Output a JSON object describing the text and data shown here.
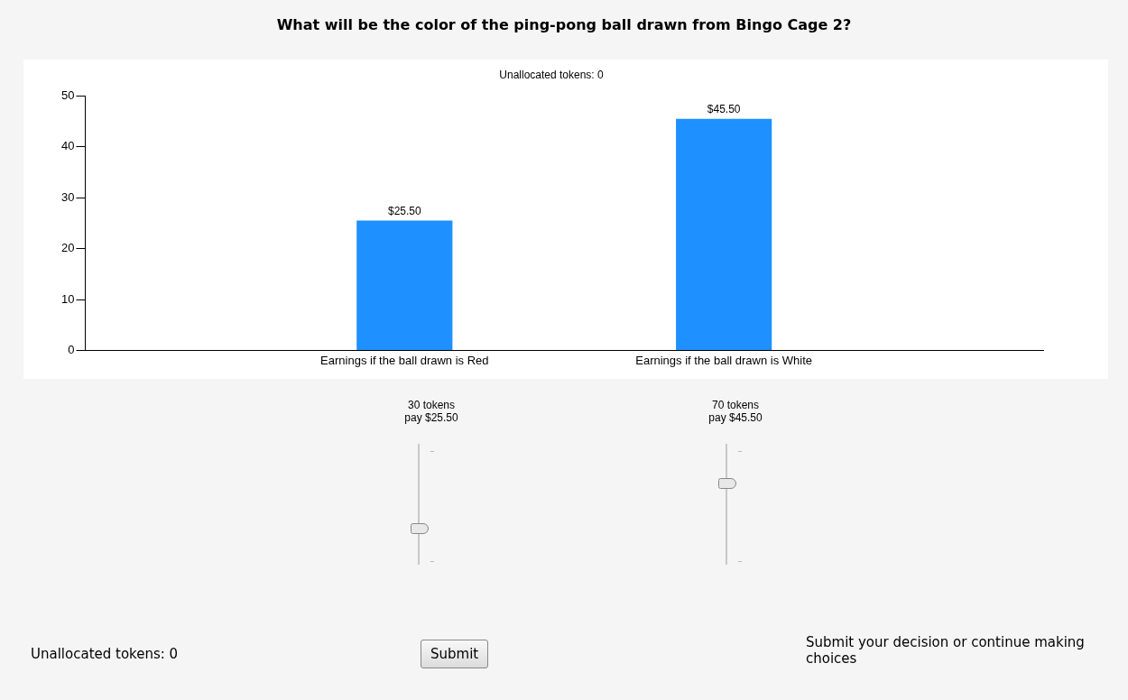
{
  "chart_data": {
    "type": "bar",
    "title": "What will be the color of the ping-pong ball drawn from Bingo Cage 2?",
    "subtitle": "Unallocated tokens: 0",
    "categories": [
      "Earnings if the ball drawn is Red",
      "Earnings if the ball drawn is White"
    ],
    "values": [
      25.5,
      45.5
    ],
    "color": "#1e90ff",
    "value_labels": [
      "$25.50",
      "$45.50"
    ],
    "ylim": [
      0,
      50
    ],
    "yticks": [
      0,
      10,
      20,
      30,
      40,
      50
    ],
    "grid": false,
    "legend": false,
    "annotations": [
      "30 tokens\npay $25.50",
      "70 tokens\npay $45.50",
      "Unallocated tokens: 0",
      "Submit",
      "Submit your decision or continue making choices"
    ]
  }
}
